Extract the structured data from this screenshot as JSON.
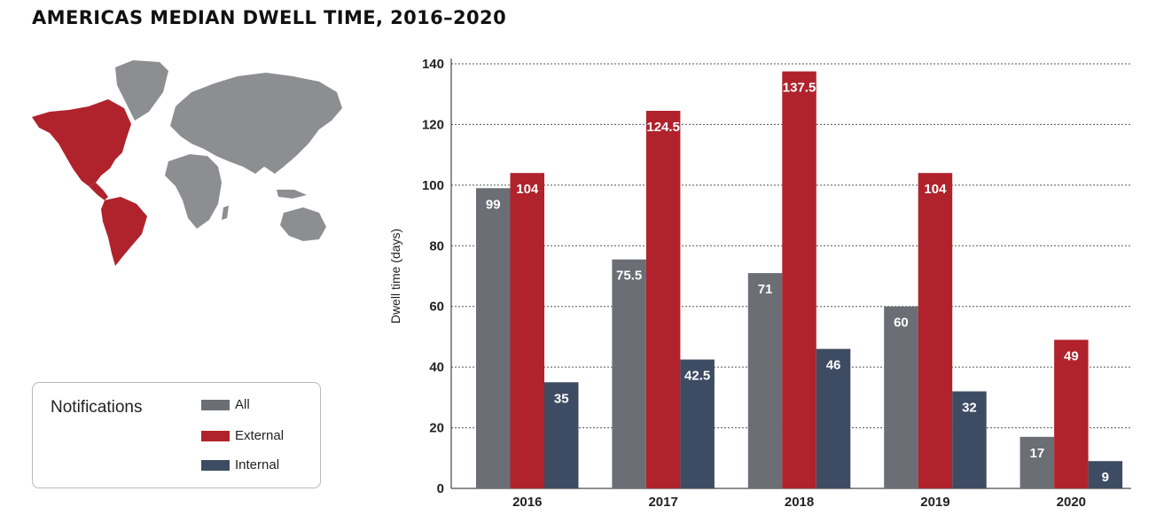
{
  "title": "AMERICAS MEDIAN DWELL TIME, 2016–2020",
  "legend": {
    "title": "Notifications",
    "items": [
      {
        "label": "All",
        "color": "#6b6e75"
      },
      {
        "label": "External",
        "color": "#b0232c"
      },
      {
        "label": "Internal",
        "color": "#3d4c63"
      }
    ]
  },
  "map": {
    "highlight_color": "#b0232c",
    "base_color": "#8d8e91"
  },
  "chart_data": {
    "type": "bar",
    "categories": [
      "2016",
      "2017",
      "2018",
      "2019",
      "2020"
    ],
    "series": [
      {
        "name": "All",
        "color": "#6b6e75",
        "values": [
          99,
          75.5,
          71,
          60,
          17
        ]
      },
      {
        "name": "External",
        "color": "#b0232c",
        "values": [
          104,
          124.5,
          137.5,
          104,
          49
        ]
      },
      {
        "name": "Internal",
        "color": "#3d4c63",
        "values": [
          35,
          42.5,
          46,
          32,
          9
        ]
      }
    ],
    "ylabel": "Dwell time (days)",
    "xlabel": "",
    "ylim": [
      0,
      140
    ],
    "yticks": [
      0,
      20,
      40,
      60,
      80,
      100,
      120,
      140
    ],
    "grid": true
  }
}
